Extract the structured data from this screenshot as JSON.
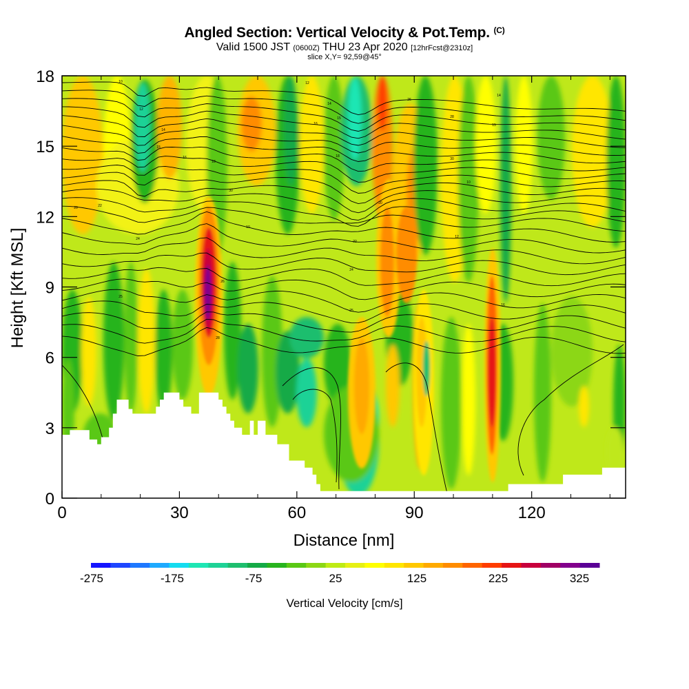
{
  "chart_data": {
    "type": "heatmap",
    "title_main": "Angled Section: Vertical Velocity & Pot.Temp.",
    "title_units": "(C)",
    "subtitle_valid": "Valid 1500 JST",
    "subtitle_utc": "(0600Z)",
    "subtitle_date": "THU 23 Apr 2020",
    "subtitle_fcst": "[12hrFcst@2310z]",
    "slice_label": "slice X,Y= 92,59@45°",
    "xlabel": "Distance [nm]",
    "ylabel": "Height [Kft MSL]",
    "xlim": [
      0,
      144
    ],
    "ylim": [
      0,
      18
    ],
    "x_ticks": [
      0,
      30,
      60,
      90,
      120
    ],
    "y_ticks": [
      0,
      3,
      6,
      9,
      12,
      15,
      18
    ],
    "colorbar": {
      "label": "Vertical Velocity [cm/s]",
      "levels": [
        -275,
        -175,
        -75,
        25,
        125,
        225,
        325
      ],
      "colors": [
        "#1414ff",
        "#1e46ff",
        "#1e78ff",
        "#1eaaff",
        "#14dcf0",
        "#1ee6b4",
        "#1ed296",
        "#1ebe6e",
        "#14aa46",
        "#28b41e",
        "#5ac814",
        "#8cd714",
        "#beeb14",
        "#e6f014",
        "#ffff00",
        "#ffe600",
        "#ffc800",
        "#ffaa00",
        "#ff8c00",
        "#ff6400",
        "#ff3c00",
        "#e61414",
        "#c8003c",
        "#a00064",
        "#82008c",
        "#5a0096"
      ]
    },
    "updraft_maxima": [
      {
        "x": 37,
        "height_kft": 8.5,
        "value": 325
      },
      {
        "x": 110,
        "height_kft": 5.5,
        "value": 240
      },
      {
        "x": 80,
        "height_kft": 12,
        "value": 150
      },
      {
        "x": 76,
        "height_kft": 3,
        "value": 125
      },
      {
        "x": 88,
        "height_kft": 9,
        "value": 100
      }
    ],
    "downdraft_minima": [
      {
        "x": 20,
        "height_kft": 17,
        "value": -175
      },
      {
        "x": 75,
        "height_kft": 18,
        "value": -175
      },
      {
        "x": 64,
        "height_kft": 4.5,
        "value": -100
      },
      {
        "x": 45,
        "height_kft": 6,
        "value": -100
      },
      {
        "x": 93,
        "height_kft": 6,
        "value": -75
      }
    ],
    "terrain_kft": [
      [
        0,
        2.7
      ],
      [
        2,
        2.7
      ],
      [
        2,
        2.9
      ],
      [
        7,
        2.9
      ],
      [
        7,
        2.5
      ],
      [
        9,
        2.5
      ],
      [
        9,
        2.3
      ],
      [
        10,
        2.3
      ],
      [
        10,
        2.6
      ],
      [
        12,
        2.6
      ],
      [
        12,
        3
      ],
      [
        13,
        3
      ],
      [
        13,
        3.6
      ],
      [
        14,
        3.6
      ],
      [
        14,
        4.2
      ],
      [
        17,
        4.2
      ],
      [
        17,
        3.8
      ],
      [
        18,
        3.8
      ],
      [
        18,
        3.6
      ],
      [
        24,
        3.6
      ],
      [
        24,
        3.9
      ],
      [
        25,
        3.9
      ],
      [
        25,
        4.2
      ],
      [
        26,
        4.2
      ],
      [
        26,
        4.5
      ],
      [
        30,
        4.5
      ],
      [
        30,
        4.2
      ],
      [
        31,
        4.2
      ],
      [
        31,
        3.9
      ],
      [
        33,
        3.9
      ],
      [
        33,
        3.6
      ],
      [
        35,
        3.6
      ],
      [
        35,
        4.5
      ],
      [
        40,
        4.5
      ],
      [
        40,
        4.2
      ],
      [
        41,
        4.2
      ],
      [
        41,
        3.9
      ],
      [
        42,
        3.9
      ],
      [
        42,
        3.6
      ],
      [
        43,
        3.6
      ],
      [
        43,
        3.3
      ],
      [
        44,
        3.3
      ],
      [
        44,
        3
      ],
      [
        46,
        3
      ],
      [
        46,
        2.7
      ],
      [
        48,
        2.7
      ],
      [
        48,
        3.3
      ],
      [
        49,
        3.3
      ],
      [
        49,
        2.7
      ],
      [
        50,
        2.7
      ],
      [
        50,
        3.3
      ],
      [
        52,
        3.3
      ],
      [
        52,
        2.7
      ],
      [
        55,
        2.7
      ],
      [
        55,
        2.3
      ],
      [
        58,
        2.3
      ],
      [
        58,
        1.6
      ],
      [
        62,
        1.6
      ],
      [
        62,
        1.3
      ],
      [
        64,
        1.3
      ],
      [
        64,
        1.0
      ],
      [
        65,
        1.0
      ],
      [
        65,
        0.6
      ],
      [
        66,
        0.6
      ],
      [
        66,
        0.3
      ],
      [
        69,
        0.3
      ],
      [
        69,
        0.3
      ],
      [
        110,
        0.3
      ],
      [
        110,
        0.3
      ],
      [
        114,
        0.3
      ],
      [
        114,
        0.6
      ],
      [
        128,
        0.6
      ],
      [
        128,
        1.0
      ],
      [
        138,
        1.0
      ],
      [
        138,
        1.3
      ],
      [
        144,
        1.3
      ]
    ],
    "isentropes_labels": [
      "10",
      "12",
      "14",
      "15",
      "16",
      "18",
      "20",
      "22",
      "24",
      "25",
      "26",
      "28",
      "30"
    ]
  }
}
